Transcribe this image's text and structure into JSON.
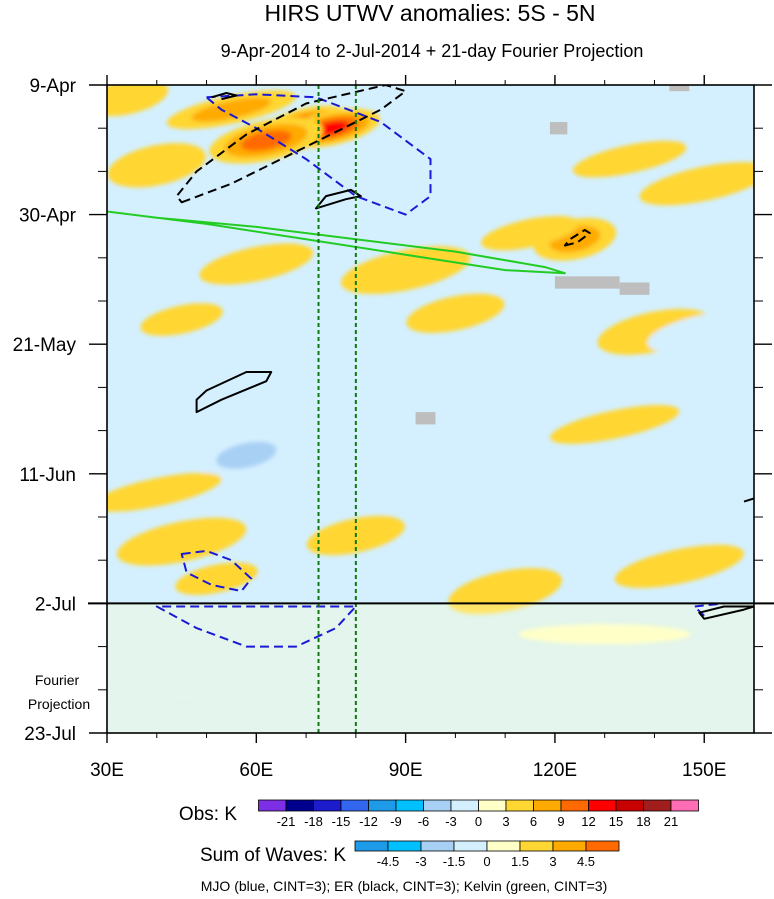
{
  "chart_data": {
    "type": "heatmap",
    "title": "HIRS UTWV anomalies: 5S - 5N",
    "subtitle": "9-Apr-2014 to 2-Jul-2014 + 21-day Fourier Projection",
    "x_axis": {
      "range": [
        30,
        160
      ],
      "unit": "degrees longitude",
      "ticks": [
        30,
        60,
        90,
        120,
        150
      ],
      "tick_labels": [
        "30E",
        "60E",
        "90E",
        "120E",
        "150E"
      ]
    },
    "y_axis": {
      "range_days": [
        0,
        105
      ],
      "direction": "time increasing downward",
      "ticks_days": [
        0,
        21,
        42,
        63,
        84,
        105
      ],
      "tick_labels": [
        "9-Apr",
        "30-Apr",
        "21-May",
        "11-Jun",
        "2-Jul",
        "23-Jul"
      ]
    },
    "projection_label": "Fourier\nProjection",
    "projection_start_day": 84,
    "reference_lines_lon": [
      72.5,
      80
    ],
    "obs_colorbar": {
      "label": "Obs: K",
      "levels": [
        "-21",
        "-18",
        "-15",
        "-12",
        "-9",
        "-6",
        "-3",
        "0",
        "3",
        "6",
        "9",
        "12",
        "15",
        "18",
        "21"
      ],
      "colors": [
        "#7d2fe6",
        "#00008c",
        "#1c1ccc",
        "#3366ee",
        "#1e9be8",
        "#00c0ff",
        "#a8d0f5",
        "#d4f0ff",
        "#ffffc8",
        "#ffd632",
        "#ffaa00",
        "#ff6a00",
        "#ff0000",
        "#c80000",
        "#a01e1e",
        "#ff6eb4"
      ]
    },
    "waves_colorbar": {
      "label": "Sum of Waves: K",
      "levels": [
        "-4.5",
        "-3",
        "-1.5",
        "0",
        "1.5",
        "3",
        "4.5"
      ],
      "colors": [
        "#1e9be8",
        "#00c0ff",
        "#a8d0f5",
        "#d4f0ff",
        "#ffffc8",
        "#ffd632",
        "#ffaa00",
        "#ff6a00"
      ]
    },
    "anomaly_features": [
      {
        "lon": 70,
        "day": 6,
        "value": 10
      },
      {
        "lon": 75,
        "day": 7,
        "value": 13
      },
      {
        "lon": 62,
        "day": 9,
        "value": 9
      },
      {
        "lon": 55,
        "day": 4,
        "value": 6
      },
      {
        "lon": 34,
        "day": 2,
        "value": 5
      },
      {
        "lon": 40,
        "day": 13,
        "value": 4
      },
      {
        "lon": 135,
        "day": 12,
        "value": 5
      },
      {
        "lon": 150,
        "day": 16,
        "value": 4
      },
      {
        "lon": 124,
        "day": 25,
        "value": 8
      },
      {
        "lon": 115,
        "day": 24,
        "value": 4
      },
      {
        "lon": 60,
        "day": 29,
        "value": 4
      },
      {
        "lon": 90,
        "day": 30,
        "value": 4
      },
      {
        "lon": 45,
        "day": 38,
        "value": 3
      },
      {
        "lon": 100,
        "day": 37,
        "value": 3
      },
      {
        "lon": 140,
        "day": 40,
        "value": 3
      },
      {
        "lon": 132,
        "day": 55,
        "value": 3
      },
      {
        "lon": 55,
        "day": 46,
        "value": -5
      },
      {
        "lon": 58,
        "day": 60,
        "value": -6
      },
      {
        "lon": 40,
        "day": 57,
        "value": -3
      },
      {
        "lon": 105,
        "day": 52,
        "value": -4
      },
      {
        "lon": 135,
        "day": 70,
        "value": -3
      },
      {
        "lon": 38,
        "day": 27,
        "value": -3
      },
      {
        "lon": 150,
        "day": 40,
        "value": -3
      },
      {
        "lon": 45,
        "day": 74,
        "value": 4
      },
      {
        "lon": 52,
        "day": 80,
        "value": 5
      },
      {
        "lon": 80,
        "day": 73,
        "value": 3
      },
      {
        "lon": 110,
        "day": 82,
        "value": 3
      },
      {
        "lon": 40,
        "day": 66,
        "value": 3
      },
      {
        "lon": 95,
        "day": 94,
        "value": -1
      },
      {
        "lon": 45,
        "day": 98,
        "value": -1
      },
      {
        "lon": 130,
        "day": 89,
        "value": 2
      },
      {
        "lon": 145,
        "day": 78,
        "value": 3
      }
    ],
    "missing_regions": [
      {
        "lon": [
          143,
          147
        ],
        "day": [
          0,
          1
        ]
      },
      {
        "lon": [
          119,
          122.5
        ],
        "day": [
          6,
          8
        ]
      },
      {
        "lon": [
          120,
          133
        ],
        "day": [
          31,
          33
        ]
      },
      {
        "lon": [
          133,
          139
        ],
        "day": [
          32,
          34
        ]
      },
      {
        "lon": [
          92,
          96
        ],
        "day": [
          53,
          55
        ]
      }
    ],
    "contour_series": [
      {
        "name": "MJO",
        "color": "blue",
        "style": "dashed",
        "polygons": [
          [
            [
              50,
              2
            ],
            [
              60,
              1.5
            ],
            [
              72,
              2
            ],
            [
              85,
              6
            ],
            [
              95,
              12
            ],
            [
              95,
              18
            ],
            [
              90,
              21
            ],
            [
              80,
              18
            ],
            [
              70,
              12
            ],
            [
              60,
              7
            ],
            [
              53,
              4
            ]
          ],
          [
            [
              45,
              76
            ],
            [
              50,
              75.5
            ],
            [
              55,
              77
            ],
            [
              59,
              80
            ],
            [
              57,
              82
            ],
            [
              51,
              81
            ],
            [
              46,
              79
            ]
          ],
          [
            [
              40,
              84.5
            ],
            [
              48,
              88
            ],
            [
              58,
              91
            ],
            [
              68,
              91
            ],
            [
              76,
              88
            ],
            [
              80,
              84.5
            ]
          ],
          [
            [
              150,
              86
            ],
            [
              148,
              84.5
            ],
            [
              154,
              84
            ]
          ]
        ]
      },
      {
        "name": "ER",
        "color": "black",
        "style": "dashed",
        "polygons": [
          [
            [
              45,
              19
            ],
            [
              55,
              16
            ],
            [
              70,
              10
            ],
            [
              85,
              4
            ],
            [
              90,
              1
            ],
            [
              86,
              0
            ],
            [
              70,
              3
            ],
            [
              58,
              8
            ],
            [
              48,
              14
            ],
            [
              44,
              18
            ]
          ],
          [
            [
              122,
              26
            ],
            [
              124.5,
              25.5
            ],
            [
              127,
              24
            ],
            [
              126,
              23.5
            ],
            [
              123,
              25
            ]
          ]
        ]
      },
      {
        "name": "ER",
        "color": "black",
        "style": "solid",
        "polygons": [
          [
            [
              72,
              20
            ],
            [
              78,
              18.5
            ],
            [
              81,
              18
            ],
            [
              79,
              17
            ],
            [
              74,
              18
            ]
          ],
          [
            [
              48,
              53
            ],
            [
              53,
              51
            ],
            [
              62,
              48
            ],
            [
              63,
              46.5
            ],
            [
              58,
              46.5
            ],
            [
              50,
              49.5
            ],
            [
              48,
              51
            ]
          ],
          [
            [
              150,
              86.5
            ],
            [
              158,
              85
            ],
            [
              160,
              84.5
            ],
            [
              154,
              84.5
            ],
            [
              149,
              85.5
            ]
          ],
          [
            [
              158,
              67.5
            ],
            [
              160,
              67
            ]
          ],
          [
            [
              53,
              2.3
            ],
            [
              56,
              1.7
            ],
            [
              54,
              1.3
            ],
            [
              51,
              2
            ]
          ]
        ]
      },
      {
        "name": "Kelvin",
        "color": "green",
        "style": "solid",
        "polygons": [
          [
            [
              30,
              20.5
            ],
            [
              50,
              22.5
            ],
            [
              70,
              25
            ],
            [
              90,
              27.5
            ],
            [
              110,
              30
            ],
            [
              122,
              30.5
            ],
            [
              118,
              29.5
            ],
            [
              100,
              27
            ],
            [
              80,
              25
            ],
            [
              60,
              23
            ],
            [
              40,
              21.5
            ],
            [
              30,
              20.5
            ]
          ]
        ]
      }
    ],
    "legend_text": "MJO (blue, CINT=3); ER (black, CINT=3); Kelvin (green, CINT=3)"
  }
}
